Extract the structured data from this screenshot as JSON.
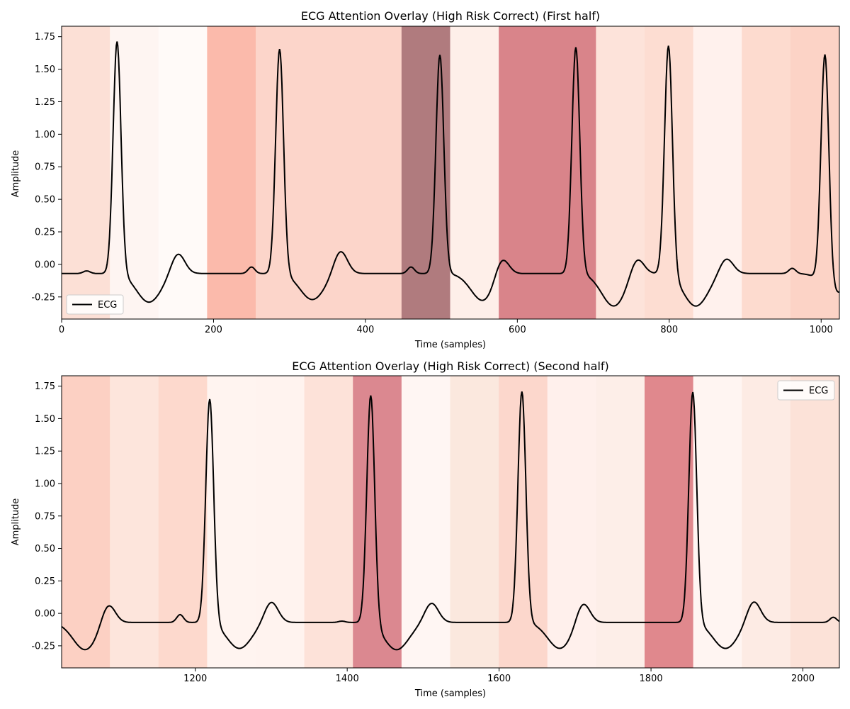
{
  "chart_data": [
    {
      "type": "line",
      "title": "ECG Attention Overlay (High Risk Correct) (First half)",
      "xlabel": "Time (samples)",
      "ylabel": "Amplitude",
      "xlim": [
        0,
        1024
      ],
      "ylim": [
        -0.42,
        1.83
      ],
      "xticks": [
        0,
        200,
        400,
        600,
        800,
        1000
      ],
      "yticks": [
        -0.25,
        0.0,
        0.25,
        0.5,
        0.75,
        1.0,
        1.25,
        1.5,
        1.75
      ],
      "legend": {
        "label": "ECG",
        "position": "lower-left"
      },
      "series": [
        {
          "name": "ECG",
          "color": "#000000"
        }
      ],
      "beats": {
        "baseline": -0.07,
        "qrs_peaks": [
          [
            73,
            1.72
          ],
          [
            287,
            1.66
          ],
          [
            498,
            1.61
          ],
          [
            677,
            1.67
          ],
          [
            799,
            1.7
          ],
          [
            1005,
            1.71
          ]
        ],
        "t_waves": [
          [
            153,
            0.09
          ],
          [
            367,
            0.11
          ],
          [
            579,
            0.09
          ],
          [
            757,
            0.07
          ],
          [
            875,
            0.05
          ]
        ],
        "p_waves": [
          [
            33,
            -0.05
          ],
          [
            250,
            -0.02
          ],
          [
            460,
            -0.02
          ],
          [
            962,
            -0.03
          ]
        ],
        "troughs": [
          [
            115,
            -0.29
          ],
          [
            330,
            -0.27
          ],
          [
            555,
            -0.28
          ],
          [
            727,
            -0.32
          ],
          [
            835,
            -0.32
          ],
          [
            1020,
            -0.22
          ]
        ]
      },
      "attention_segments": [
        {
          "start": 0,
          "end": 64,
          "color": "#fce0d6"
        },
        {
          "start": 64,
          "end": 128,
          "color": "#fef5f2"
        },
        {
          "start": 128,
          "end": 192,
          "color": "#fffaf8"
        },
        {
          "start": 192,
          "end": 256,
          "color": "#fbbaab"
        },
        {
          "start": 256,
          "end": 320,
          "color": "#fcd5ca"
        },
        {
          "start": 320,
          "end": 384,
          "color": "#fcd5ca"
        },
        {
          "start": 384,
          "end": 448,
          "color": "#fcd5ca"
        },
        {
          "start": 448,
          "end": 512,
          "color": "#b07b7e"
        },
        {
          "start": 512,
          "end": 576,
          "color": "#feefe9"
        },
        {
          "start": 576,
          "end": 640,
          "color": "#d9848a"
        },
        {
          "start": 640,
          "end": 704,
          "color": "#d9848a"
        },
        {
          "start": 704,
          "end": 768,
          "color": "#fde3da"
        },
        {
          "start": 768,
          "end": 832,
          "color": "#fdddd2"
        },
        {
          "start": 832,
          "end": 896,
          "color": "#fff1ed"
        },
        {
          "start": 896,
          "end": 960,
          "color": "#fddbcf"
        },
        {
          "start": 960,
          "end": 1024,
          "color": "#fcd3c6"
        }
      ]
    },
    {
      "type": "line",
      "title": "ECG Attention Overlay (High Risk Correct) (Second half)",
      "xlabel": "Time (samples)",
      "ylabel": "Amplitude",
      "xlim": [
        1024,
        2048
      ],
      "ylim": [
        -0.42,
        1.83
      ],
      "xticks": [
        1200,
        1400,
        1600,
        1800,
        2000
      ],
      "yticks": [
        -0.25,
        0.0,
        0.25,
        0.5,
        0.75,
        1.0,
        1.25,
        1.5,
        1.75
      ],
      "legend": {
        "label": "ECG",
        "position": "upper-right"
      },
      "series": [
        {
          "name": "ECG",
          "color": "#000000"
        }
      ],
      "beats": {
        "baseline": -0.07,
        "qrs_peaks": [
          [
            1219,
            1.66
          ],
          [
            1431,
            1.7
          ],
          [
            1630,
            1.71
          ],
          [
            1855,
            1.71
          ]
        ],
        "t_waves": [
          [
            1085,
            0.09
          ],
          [
            1300,
            0.09
          ],
          [
            1511,
            0.08
          ],
          [
            1710,
            0.1
          ],
          [
            1935,
            0.1
          ]
        ],
        "p_waves": [
          [
            1180,
            -0.01
          ],
          [
            1393,
            -0.06
          ],
          [
            1586,
            -0.07
          ],
          [
            1815,
            -0.07
          ],
          [
            2040,
            -0.03
          ]
        ],
        "troughs": [
          [
            1055,
            -0.28
          ],
          [
            1258,
            -0.27
          ],
          [
            1465,
            -0.28
          ],
          [
            1680,
            -0.27
          ],
          [
            1898,
            -0.27
          ]
        ]
      },
      "attention_segments": [
        {
          "start": 1024,
          "end": 1088,
          "color": "#fcd0c3"
        },
        {
          "start": 1088,
          "end": 1152,
          "color": "#fde5dc"
        },
        {
          "start": 1152,
          "end": 1216,
          "color": "#fdd9cd"
        },
        {
          "start": 1216,
          "end": 1280,
          "color": "#fff4f0"
        },
        {
          "start": 1280,
          "end": 1344,
          "color": "#fff3ef"
        },
        {
          "start": 1344,
          "end": 1408,
          "color": "#fde2d9"
        },
        {
          "start": 1408,
          "end": 1472,
          "color": "#db8890"
        },
        {
          "start": 1472,
          "end": 1536,
          "color": "#fff6f3"
        },
        {
          "start": 1536,
          "end": 1600,
          "color": "#fbe8de"
        },
        {
          "start": 1600,
          "end": 1664,
          "color": "#fcd7cc"
        },
        {
          "start": 1664,
          "end": 1728,
          "color": "#fff0ec"
        },
        {
          "start": 1728,
          "end": 1792,
          "color": "#fdeee8"
        },
        {
          "start": 1792,
          "end": 1856,
          "color": "#e0888d"
        },
        {
          "start": 1856,
          "end": 1920,
          "color": "#fff5f2"
        },
        {
          "start": 1920,
          "end": 1984,
          "color": "#fdebe4"
        },
        {
          "start": 1984,
          "end": 2048,
          "color": "#fce2d8"
        }
      ]
    }
  ]
}
